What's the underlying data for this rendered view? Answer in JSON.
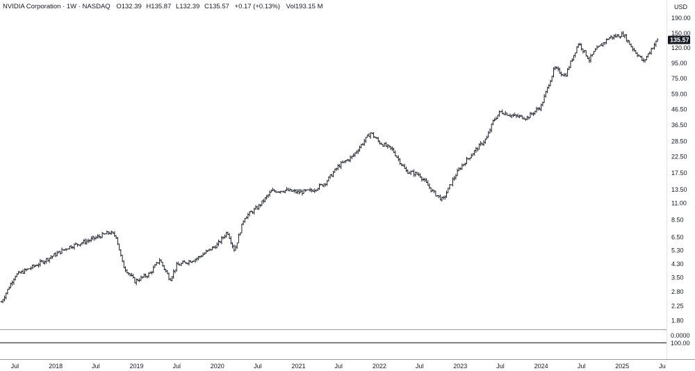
{
  "legend": {
    "symbol": "NVIDIA Corporation · 1W · NASDAQ",
    "open": "O132.39",
    "high": "H135.87",
    "low": "L132.39",
    "close": "C135.57",
    "change": "+0.17 (+0.13%)",
    "volume": "Vol193.15 M"
  },
  "price_axis": {
    "currency": "USD",
    "last_price": "135.57",
    "ticks": [
      "190.00",
      "150.00",
      "120.00",
      "95.00",
      "75.00",
      "59.00",
      "46.50",
      "36.50",
      "28.50",
      "22.50",
      "17.50",
      "13.50",
      "11.00",
      "8.50",
      "6.50",
      "5.30",
      "4.30",
      "3.50",
      "2.80",
      "2.25",
      "1.80"
    ]
  },
  "indicator_pane": {
    "value_label": "0.0000",
    "lower_label": "100.00"
  },
  "time_axis": {
    "labels": [
      "Jul",
      "2018",
      "Jul",
      "2019",
      "Jul",
      "2020",
      "Jul",
      "2021",
      "Jul",
      "2022",
      "Jul",
      "2023",
      "Jul",
      "2024",
      "Jul",
      "2025",
      "Ju"
    ]
  },
  "colors": {
    "bar": "#131722",
    "grid_line": "#9598a1",
    "current_price_bg": "#131722"
  },
  "chart_data": {
    "type": "ohlc",
    "title": "NVIDIA Corporation · 1W · NASDAQ",
    "yscale": "log",
    "ylim": [
      1.6,
      220
    ],
    "x_dates": [
      "2017-05-01",
      "2017-07-01",
      "2017-10-01",
      "2018-01-01",
      "2018-03-01",
      "2018-06-01",
      "2018-09-01",
      "2018-10-01",
      "2018-11-01",
      "2018-12-24",
      "2019-03-01",
      "2019-04-15",
      "2019-06-01",
      "2019-07-01",
      "2019-10-01",
      "2020-01-01",
      "2020-02-15",
      "2020-03-18",
      "2020-05-01",
      "2020-07-01",
      "2020-09-01",
      "2020-11-01",
      "2021-01-01",
      "2021-03-01",
      "2021-05-01",
      "2021-07-01",
      "2021-09-01",
      "2021-11-22",
      "2022-01-01",
      "2022-03-01",
      "2022-05-01",
      "2022-07-01",
      "2022-09-01",
      "2022-10-14",
      "2022-12-01",
      "2023-01-01",
      "2023-03-01",
      "2023-05-01",
      "2023-05-30",
      "2023-07-01",
      "2023-09-01",
      "2023-10-30",
      "2024-01-01",
      "2024-03-01",
      "2024-04-19",
      "2024-06-18",
      "2024-08-05",
      "2024-09-01",
      "2024-11-01",
      "2025-01-06",
      "2025-02-15",
      "2025-04-07",
      "2025-05-15",
      "2025-06-09"
    ],
    "close_values": [
      2.4,
      3.6,
      4.2,
      5.0,
      5.6,
      6.2,
      7.0,
      6.6,
      4.2,
      3.3,
      3.7,
      4.6,
      3.4,
      4.2,
      4.7,
      5.8,
      7.1,
      5.3,
      8.8,
      10.3,
      13.2,
      13.4,
      13.0,
      13.3,
      15.0,
      19.5,
      22.5,
      32.5,
      28.0,
      25.0,
      18.0,
      17.0,
      13.0,
      11.5,
      16.0,
      19.0,
      24.0,
      30.0,
      39.0,
      45.0,
      42.0,
      41.0,
      49.0,
      88.0,
      78.0,
      130.0,
      100.0,
      115.0,
      140.0,
      148.0,
      120.0,
      97.0,
      120.0,
      135.57
    ],
    "volume": "193.15 M"
  }
}
